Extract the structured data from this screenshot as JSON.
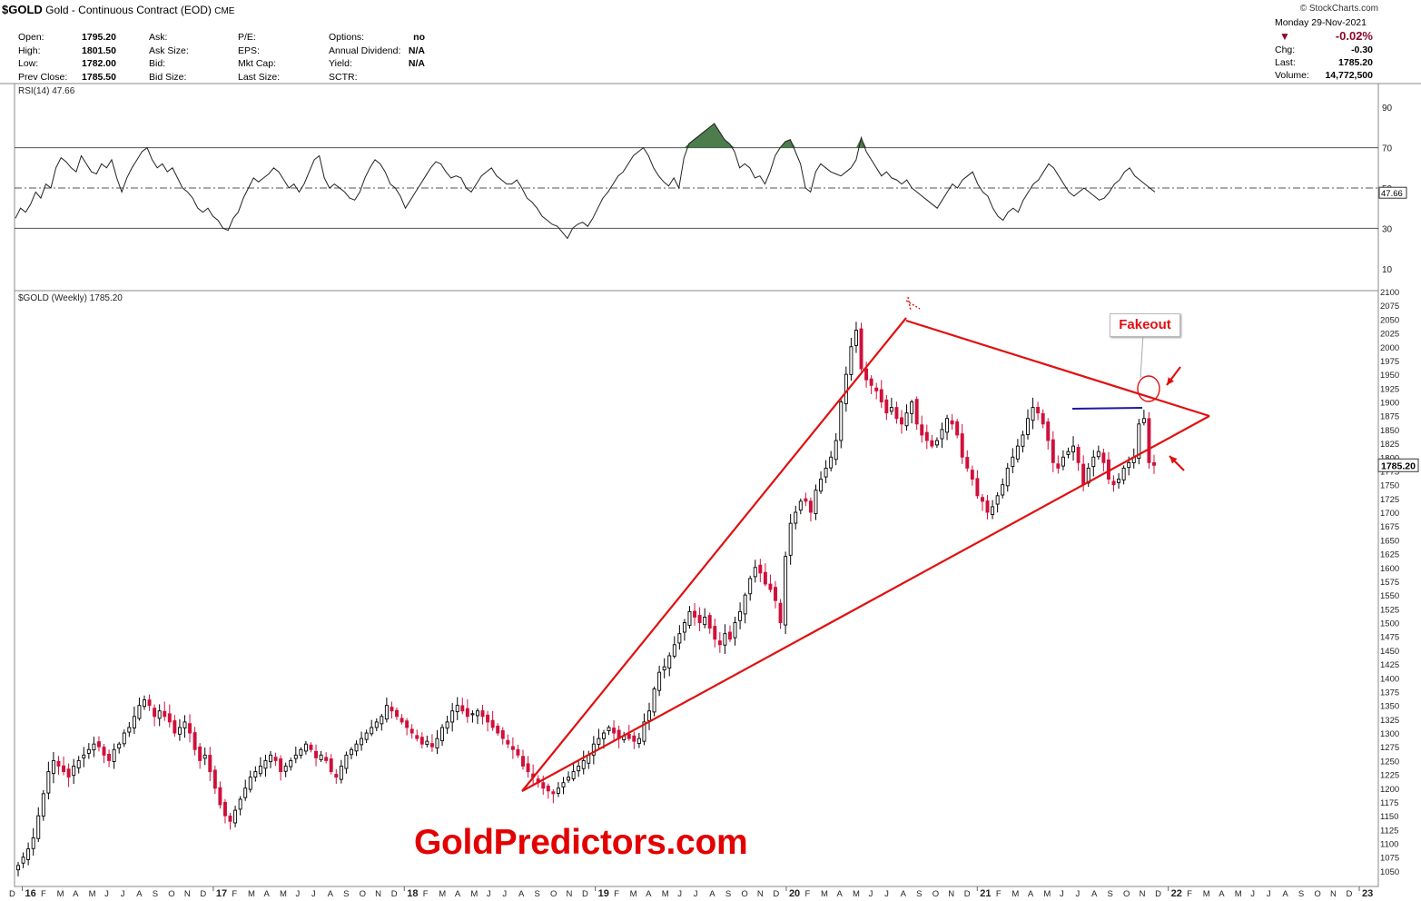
{
  "header": {
    "symbol": "$GOLD",
    "name": "Gold - Continuous Contract (EOD)",
    "exchange": "CME",
    "copyright": "© StockCharts.com"
  },
  "quote": {
    "col1": [
      {
        "label": "Open:",
        "value": "1795.20"
      },
      {
        "label": "High:",
        "value": "1801.50"
      },
      {
        "label": "Low:",
        "value": "1782.00"
      },
      {
        "label": "Prev Close:",
        "value": "1785.50"
      }
    ],
    "col2": [
      {
        "label": "Ask:",
        "value": ""
      },
      {
        "label": "Ask Size:",
        "value": ""
      },
      {
        "label": "Bid:",
        "value": ""
      },
      {
        "label": "Bid Size:",
        "value": ""
      }
    ],
    "col3": [
      {
        "label": "P/E:",
        "value": ""
      },
      {
        "label": "EPS:",
        "value": ""
      },
      {
        "label": "Mkt Cap:",
        "value": ""
      },
      {
        "label": "Last Size:",
        "value": ""
      }
    ],
    "col4": [
      {
        "label": "Options:",
        "value": "no"
      },
      {
        "label": "Annual Dividend:",
        "value": "N/A"
      },
      {
        "label": "Yield:",
        "value": "N/A"
      },
      {
        "label": "SCTR:",
        "value": ""
      }
    ]
  },
  "summary": {
    "date": "Monday  29-Nov-2021",
    "change_pct": "-0.02%",
    "chg_label": "Chg:",
    "chg": "-0.30",
    "last_label": "Last:",
    "last": "1785.20",
    "volume_label": "Volume:",
    "volume": "14,772,500"
  },
  "colors": {
    "up_candle": "#000000",
    "down_candle": "#d0103a",
    "trendline": "#e01010",
    "resistance": "#1a1aa0",
    "rsi_fill": "#3a6e3a",
    "down_marker": "#8b0a2a"
  },
  "chart_data": [
    {
      "type": "line",
      "indicator": "RSI(14)",
      "label": "RSI(14) 47.66",
      "last_value": 47.66,
      "last_value_label": "47.66",
      "ylim": [
        0,
        100
      ],
      "y_ticks": [
        90,
        70,
        50,
        30,
        10
      ],
      "reference_lines": [
        70,
        50,
        30
      ],
      "values": [
        35,
        40,
        38,
        42,
        48,
        45,
        52,
        50,
        60,
        65,
        63,
        60,
        58,
        66,
        62,
        58,
        57,
        62,
        60,
        64,
        55,
        48,
        55,
        60,
        64,
        68,
        70,
        64,
        60,
        62,
        58,
        60,
        55,
        50,
        48,
        45,
        40,
        38,
        40,
        36,
        34,
        30,
        29,
        35,
        38,
        45,
        50,
        55,
        53,
        55,
        57,
        60,
        58,
        54,
        50,
        52,
        48,
        52,
        58,
        64,
        66,
        55,
        50,
        52,
        50,
        48,
        45,
        44,
        48,
        55,
        60,
        64,
        62,
        58,
        52,
        50,
        46,
        40,
        44,
        48,
        52,
        56,
        60,
        63,
        62,
        58,
        55,
        56,
        55,
        50,
        48,
        52,
        56,
        58,
        60,
        56,
        54,
        52,
        52,
        54,
        50,
        45,
        43,
        40,
        36,
        34,
        32,
        31,
        28,
        25,
        30,
        32,
        33,
        31,
        35,
        40,
        45,
        48,
        52,
        56,
        58,
        62,
        66,
        68,
        70,
        66,
        60,
        56,
        53,
        51,
        55,
        50,
        65,
        72,
        74,
        76,
        78,
        80,
        82,
        78,
        74,
        72,
        68,
        60,
        62,
        60,
        55,
        56,
        52,
        58,
        66,
        70,
        73,
        74,
        68,
        62,
        50,
        48,
        58,
        62,
        60,
        58,
        57,
        56,
        58,
        60,
        64,
        75,
        68,
        64,
        60,
        56,
        58,
        55,
        54,
        52,
        54,
        50,
        48,
        46,
        44,
        42,
        40,
        44,
        48,
        52,
        50,
        54,
        56,
        58,
        52,
        48,
        46,
        40,
        36,
        34,
        38,
        40,
        38,
        44,
        48,
        52,
        54,
        58,
        62,
        60,
        56,
        52,
        48,
        46,
        48,
        50,
        48,
        46,
        44,
        45,
        48,
        52,
        54,
        58,
        60,
        56,
        54,
        52,
        50,
        48
      ]
    },
    {
      "type": "candlestick",
      "title": "$GOLD (Weekly) 1785.20",
      "last_value": 1785.2,
      "last_value_label": "1785.20",
      "ylim": [
        1040,
        2100
      ],
      "y_ticks": [
        2100,
        2075,
        2050,
        2025,
        2000,
        1975,
        1950,
        1925,
        1900,
        1875,
        1850,
        1825,
        1800,
        1775,
        1750,
        1725,
        1700,
        1675,
        1650,
        1625,
        1600,
        1575,
        1550,
        1525,
        1500,
        1475,
        1450,
        1425,
        1400,
        1375,
        1350,
        1325,
        1300,
        1275,
        1250,
        1225,
        1200,
        1175,
        1150,
        1125,
        1100,
        1075,
        1050
      ],
      "x_labels": [
        "D",
        "16",
        "F",
        "M",
        "A",
        "M",
        "J",
        "J",
        "A",
        "S",
        "O",
        "N",
        "D",
        "17",
        "F",
        "M",
        "A",
        "M",
        "J",
        "J",
        "A",
        "S",
        "O",
        "N",
        "D",
        "18",
        "F",
        "M",
        "A",
        "M",
        "J",
        "J",
        "A",
        "S",
        "O",
        "N",
        "D",
        "19",
        "F",
        "M",
        "A",
        "M",
        "J",
        "J",
        "A",
        "S",
        "O",
        "N",
        "D",
        "20",
        "F",
        "M",
        "A",
        "M",
        "J",
        "J",
        "A",
        "S",
        "O",
        "N",
        "D",
        "21",
        "F",
        "M",
        "A",
        "M",
        "J",
        "J",
        "A",
        "S",
        "O",
        "N",
        "D",
        "22",
        "F",
        "M",
        "A",
        "M",
        "J",
        "J",
        "A",
        "S",
        "O",
        "N",
        "D",
        "23"
      ],
      "x_start": "2015-12",
      "x_end": "2023-01",
      "closes": [
        1060,
        1075,
        1090,
        1110,
        1150,
        1190,
        1230,
        1250,
        1240,
        1230,
        1220,
        1240,
        1250,
        1260,
        1270,
        1280,
        1275,
        1260,
        1250,
        1270,
        1280,
        1300,
        1310,
        1330,
        1350,
        1360,
        1350,
        1330,
        1340,
        1330,
        1320,
        1300,
        1310,
        1320,
        1300,
        1270,
        1250,
        1260,
        1230,
        1200,
        1170,
        1150,
        1140,
        1160,
        1180,
        1200,
        1220,
        1230,
        1240,
        1250,
        1260,
        1250,
        1230,
        1240,
        1250,
        1260,
        1270,
        1280,
        1270,
        1255,
        1260,
        1250,
        1230,
        1220,
        1240,
        1260,
        1270,
        1280,
        1290,
        1300,
        1310,
        1320,
        1330,
        1350,
        1340,
        1330,
        1320,
        1310,
        1300,
        1290,
        1280,
        1285,
        1275,
        1290,
        1310,
        1320,
        1340,
        1350,
        1340,
        1330,
        1335,
        1340,
        1330,
        1320,
        1310,
        1300,
        1290,
        1280,
        1270,
        1260,
        1240,
        1230,
        1220,
        1210,
        1200,
        1195,
        1190,
        1200,
        1210,
        1220,
        1230,
        1240,
        1250,
        1260,
        1280,
        1290,
        1300,
        1310,
        1300,
        1290,
        1295,
        1290,
        1285,
        1290,
        1320,
        1340,
        1380,
        1410,
        1420,
        1440,
        1460,
        1480,
        1500,
        1520,
        1510,
        1500,
        1510,
        1490,
        1470,
        1460,
        1480,
        1470,
        1500,
        1520,
        1550,
        1580,
        1600,
        1590,
        1570,
        1560,
        1540,
        1500,
        1620,
        1680,
        1700,
        1720,
        1720,
        1700,
        1740,
        1760,
        1780,
        1800,
        1830,
        1900,
        1950,
        2000,
        2030,
        1960,
        1940,
        1930,
        1920,
        1900,
        1880,
        1890,
        1870,
        1860,
        1880,
        1900,
        1860,
        1840,
        1830,
        1820,
        1830,
        1850,
        1870,
        1860,
        1840,
        1800,
        1780,
        1760,
        1730,
        1720,
        1700,
        1710,
        1730,
        1750,
        1780,
        1800,
        1820,
        1840,
        1870,
        1890,
        1880,
        1860,
        1830,
        1790,
        1780,
        1800,
        1810,
        1820,
        1790,
        1750,
        1780,
        1800,
        1810,
        1790,
        1760,
        1750,
        1760,
        1780,
        1790,
        1800,
        1860,
        1870,
        1790,
        1785.2
      ]
    }
  ],
  "annotations": {
    "callout": "Fakeout",
    "watermark": "GoldPredictors.com"
  }
}
